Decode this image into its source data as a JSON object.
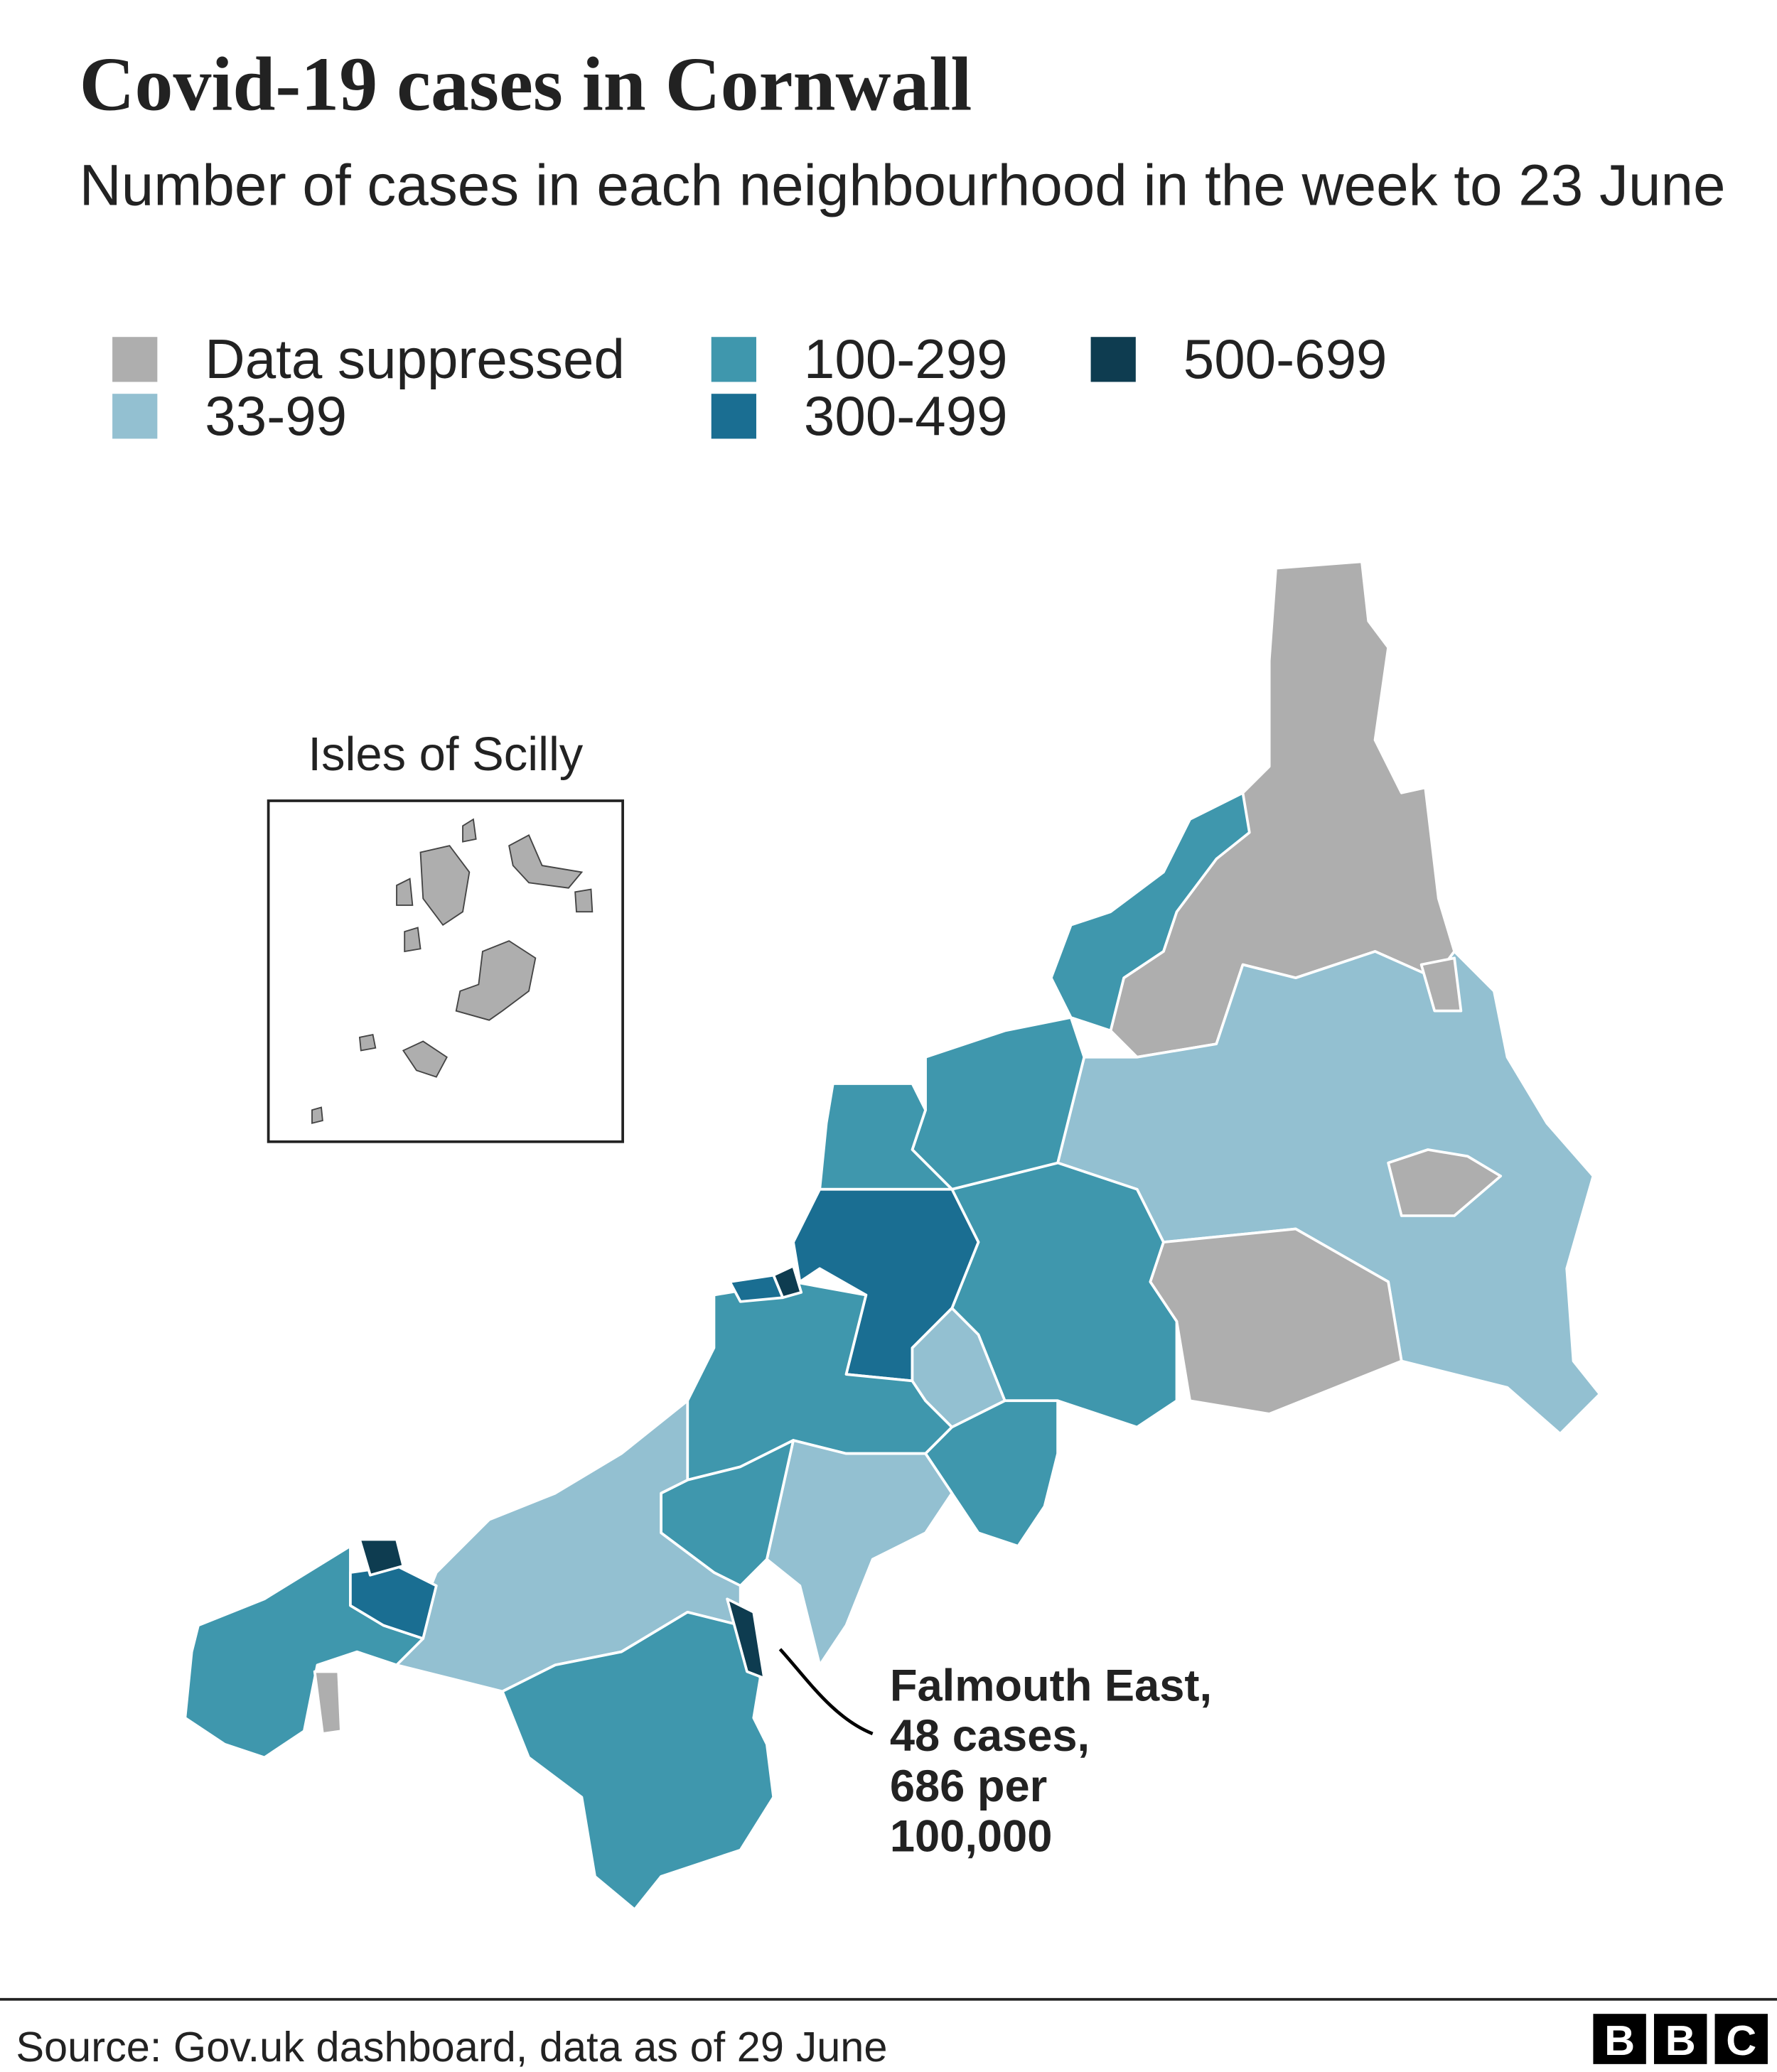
{
  "title": "Covid-19 cases in Cornwall",
  "subtitle": "Number of cases in each neighbourhood in the week to 23 June",
  "legend": [
    {
      "label": "Data suppressed",
      "color": "#aeaeae"
    },
    {
      "label": "100-299",
      "color": "#3f97ad"
    },
    {
      "label": "500-699",
      "color": "#0e3c50"
    },
    {
      "label": "33-99",
      "color": "#93c0d1"
    },
    {
      "label": "300-499",
      "color": "#1a6e92"
    }
  ],
  "inset_label": "Isles of Scilly",
  "annotation": [
    "Falmouth East,",
    "48 cases,",
    "686 per",
    "100,000"
  ],
  "source": "Source: Gov.uk dashboard, data as of 29 June",
  "logo": [
    "B",
    "B",
    "C"
  ]
}
